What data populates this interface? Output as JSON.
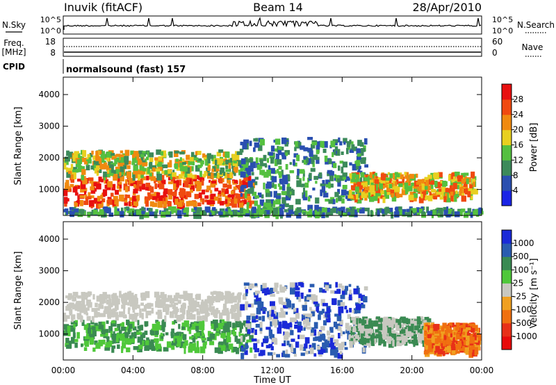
{
  "header": {
    "station": "Inuvik (fitACF)",
    "beam": "Beam 14",
    "date": "28/Apr/2010"
  },
  "nsky_panel": {
    "left_label": "N.Sky",
    "right_label": "N.Search",
    "left_ticks": [
      "10^5",
      "10^0"
    ],
    "right_ticks": [
      "10^5",
      "10^0"
    ]
  },
  "freq_panel": {
    "left_label_1": "Freq.",
    "left_label_2": "[MHz]",
    "right_label": "Nave",
    "left_ticks": [
      "18",
      "8"
    ],
    "right_ticks": [
      "60",
      "0"
    ]
  },
  "cpid_panel": {
    "label": "CPID",
    "text": "normalsound (fast) 157"
  },
  "chart_data": [
    {
      "type": "heatmap",
      "name": "power",
      "ylabel": "Slant Range [km]",
      "xlabel": "",
      "yticks": [
        "1000",
        "2000",
        "3000",
        "4000"
      ],
      "ylim": [
        180,
        4550
      ],
      "xticks": [
        "00:00",
        "04:00",
        "08:00",
        "12:00",
        "16:00",
        "20:00",
        "00:00"
      ],
      "colorbar": {
        "label": "Power [dB]",
        "ticks": [
          "4",
          "8",
          "12",
          "16",
          "20",
          "24",
          "28"
        ],
        "colors": [
          "#1a24e6",
          "#2a4fb0",
          "#3c8a5a",
          "#55c040",
          "#e8d020",
          "#f08a10",
          "#f04a10",
          "#e81010"
        ]
      }
    },
    {
      "type": "heatmap",
      "name": "velocity",
      "ylabel": "Slant Range [km]",
      "xlabel": "Time UT",
      "yticks": [
        "1000",
        "2000",
        "3000",
        "4000"
      ],
      "ylim": [
        180,
        4550
      ],
      "xticks": [
        "00:00",
        "04:00",
        "08:00",
        "12:00",
        "16:00",
        "20:00",
        "00:00"
      ],
      "colorbar": {
        "label": "Velocity [m s⁻¹]",
        "ticks": [
          "1000",
          "500",
          "100",
          "25",
          "-25",
          "-100",
          "-500",
          "-1000"
        ],
        "colors": [
          "#1a2ad8",
          "#2a5cb0",
          "#3a8a52",
          "#4fc83a",
          "#c8c8c0",
          "#f0a020",
          "#f07010",
          "#e83018",
          "#e80a0a"
        ]
      }
    }
  ]
}
